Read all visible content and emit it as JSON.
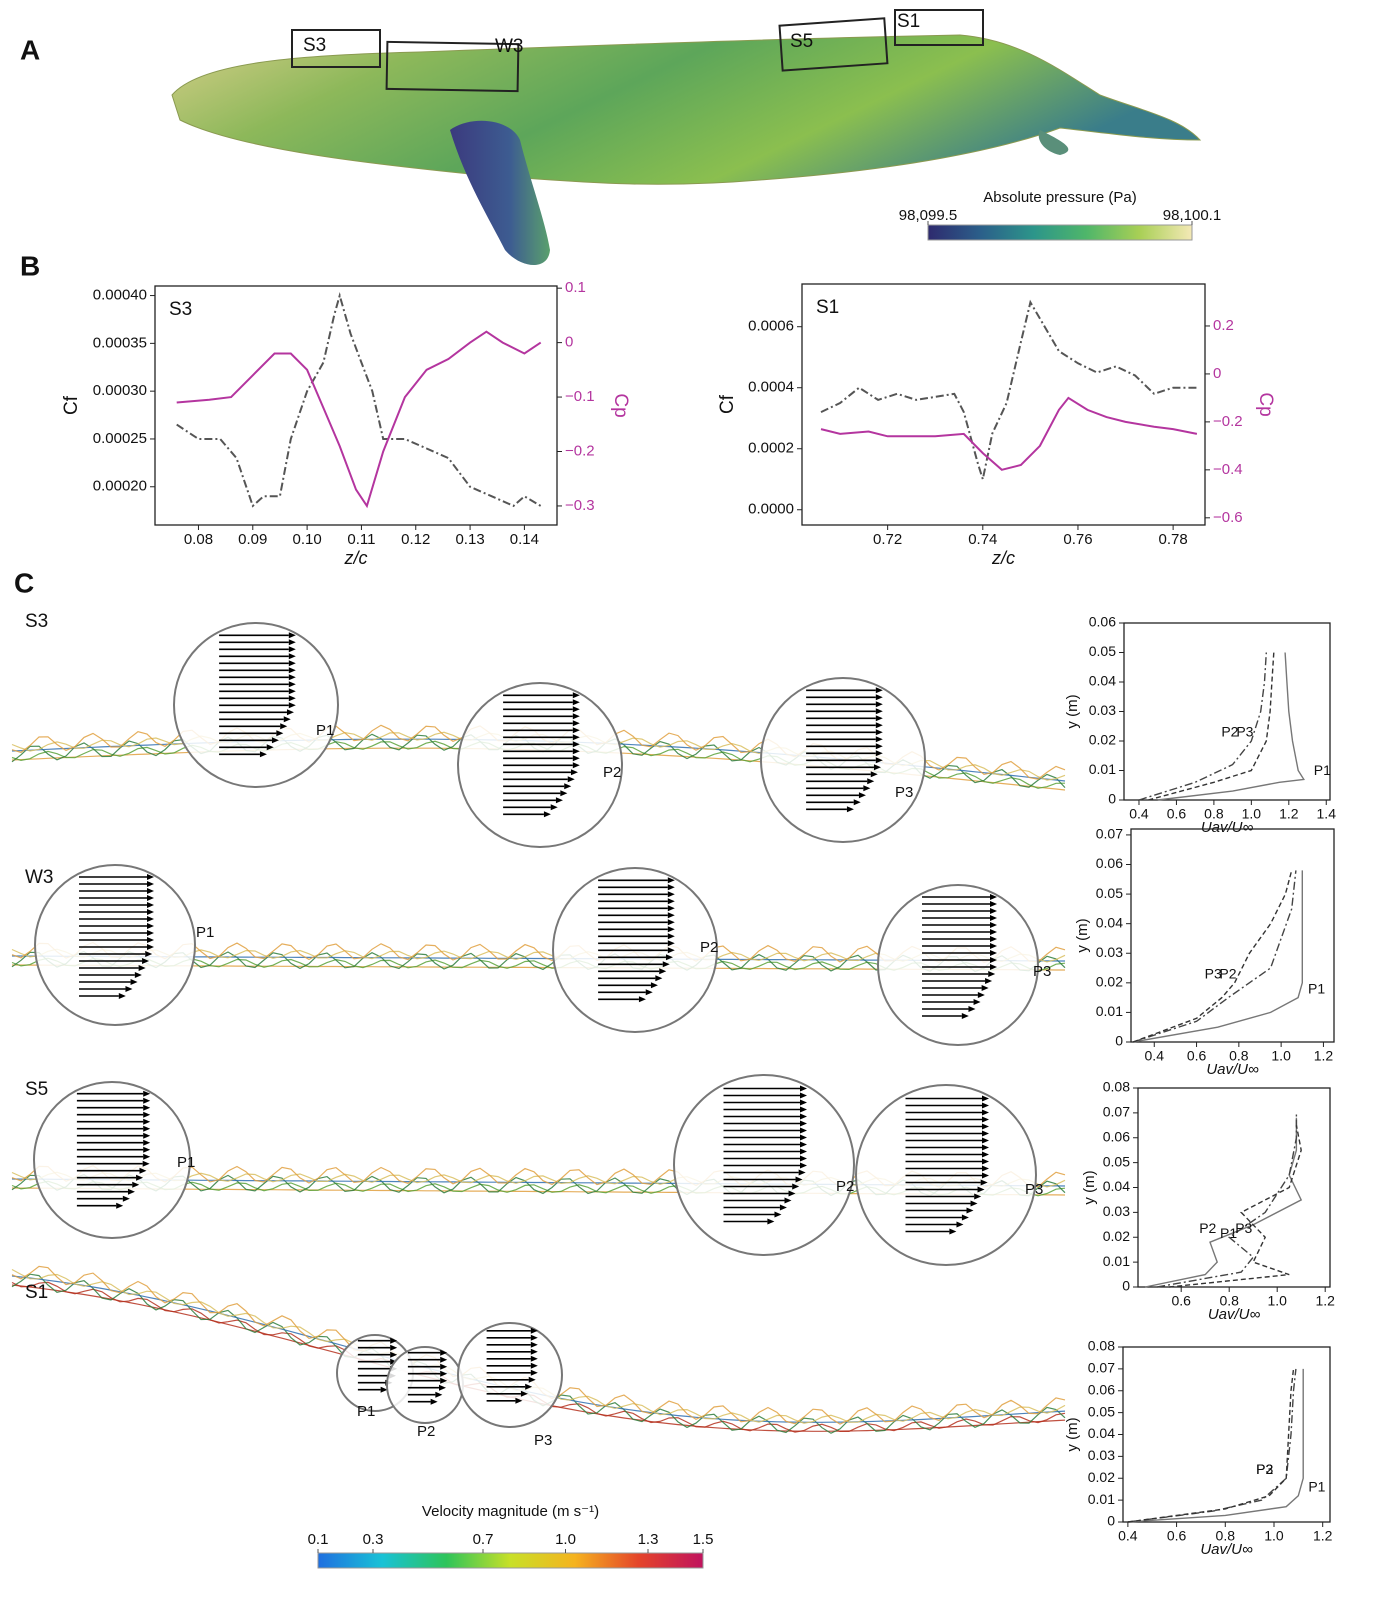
{
  "figure": {
    "panel_labels": [
      "A",
      "B",
      "C"
    ],
    "whale_boxes": [
      "S3",
      "W3",
      "S5",
      "S1"
    ],
    "rows": [
      {
        "label": "S3",
        "points": [
          "P1",
          "P2",
          "P3"
        ]
      },
      {
        "label": "W3",
        "points": [
          "P1",
          "P2",
          "P3"
        ]
      },
      {
        "label": "S5",
        "points": [
          "P1",
          "P2",
          "P3"
        ]
      },
      {
        "label": "S1",
        "points": [
          "P1",
          "P2",
          "P3"
        ]
      }
    ]
  },
  "chart_data": [
    {
      "type": "line",
      "label": "S3",
      "xlabel": "z/c",
      "ylabel": "Cf",
      "y2label": "Cp",
      "y2_color": "#b4359f",
      "xlim": [
        0.072,
        0.146
      ],
      "xticks": [
        0.08,
        0.09,
        {
          "value": 0.1,
          "label": "0.10"
        },
        0.11,
        0.12,
        0.13,
        0.14
      ],
      "ylim": [
        0.00016,
        0.00041
      ],
      "yticks": [
        {
          "value": 0.0002,
          "label": "0.00020"
        },
        0.00025,
        {
          "value": 0.0003,
          "label": "0.00030"
        },
        0.00035,
        {
          "value": 0.0004,
          "label": "0.00040"
        }
      ],
      "y2lim": [
        -0.335,
        0.104
      ],
      "y2ticks": [
        {
          "value": -0.3,
          "label": "−0.3"
        },
        {
          "value": -0.2,
          "label": "−0.2"
        },
        {
          "value": -0.1,
          "label": "−0.1"
        },
        0,
        0.1
      ],
      "series": [
        {
          "color": "#555555",
          "style": "dashdot",
          "x": [
            0.076,
            0.08,
            0.084,
            0.087,
            0.09,
            0.092,
            0.095,
            0.097,
            0.1,
            0.103,
            0.105,
            0.106,
            0.108,
            0.11,
            0.112,
            0.114,
            0.118,
            0.122,
            0.126,
            0.13,
            0.134,
            0.138,
            0.14,
            0.143
          ],
          "values": [
            0.000265,
            0.00025,
            0.00025,
            0.00023,
            0.00018,
            0.00019,
            0.00019,
            0.00025,
            0.0003,
            0.00033,
            0.00038,
            0.0004,
            0.00036,
            0.00033,
            0.0003,
            0.00025,
            0.00025,
            0.00024,
            0.00023,
            0.0002,
            0.00019,
            0.00018,
            0.00019,
            0.00018
          ]
        },
        {
          "color": "#b4359f",
          "style": "solid",
          "axis": "y2",
          "x": [
            0.076,
            0.082,
            0.086,
            0.09,
            0.094,
            0.097,
            0.1,
            0.103,
            0.106,
            0.109,
            0.111,
            0.114,
            0.118,
            0.122,
            0.126,
            0.13,
            0.133,
            0.136,
            0.14,
            0.143
          ],
          "values": [
            -0.11,
            -0.105,
            -0.1,
            -0.06,
            -0.02,
            -0.02,
            -0.05,
            -0.12,
            -0.19,
            -0.27,
            -0.3,
            -0.2,
            -0.1,
            -0.05,
            -0.03,
            0,
            0.02,
            0,
            -0.02,
            0
          ]
        }
      ]
    },
    {
      "type": "line",
      "label": "S1",
      "xlabel": "z/c",
      "ylabel": "Cf",
      "y2label": "Cp",
      "y2_color": "#b4359f",
      "xlim": [
        0.702,
        0.7867
      ],
      "xticks": [
        0.72,
        0.74,
        0.76,
        0.78
      ],
      "ylim": [
        -5e-05,
        0.00074
      ],
      "yticks": [
        {
          "value": 0,
          "label": "0.0000"
        },
        0.0002,
        0.0004,
        0.0006
      ],
      "y2lim": [
        -0.63,
        0.375
      ],
      "y2ticks": [
        {
          "value": -0.6,
          "label": "−0.6"
        },
        {
          "value": -0.4,
          "label": "−0.4"
        },
        {
          "value": -0.2,
          "label": "−0.2"
        },
        0,
        0.2
      ],
      "series": [
        {
          "color": "#555555",
          "style": "dashdot",
          "x": [
            0.706,
            0.71,
            0.714,
            0.718,
            0.722,
            0.726,
            0.73,
            0.734,
            0.736,
            0.739,
            0.74,
            0.742,
            0.745,
            0.748,
            0.75,
            0.753,
            0.756,
            0.76,
            0.764,
            0.768,
            0.772,
            0.776,
            0.78,
            0.785
          ],
          "values": [
            0.00032,
            0.00035,
            0.0004,
            0.00036,
            0.00038,
            0.00036,
            0.00037,
            0.00038,
            0.00032,
            0.00015,
            0.0001,
            0.00025,
            0.00035,
            0.00055,
            0.00068,
            0.0006,
            0.00052,
            0.00048,
            0.00045,
            0.00047,
            0.00044,
            0.00038,
            0.0004,
            0.0004
          ]
        },
        {
          "color": "#b4359f",
          "style": "solid",
          "axis": "y2",
          "x": [
            0.706,
            0.71,
            0.716,
            0.72,
            0.726,
            0.73,
            0.736,
            0.74,
            0.744,
            0.748,
            0.752,
            0.756,
            0.758,
            0.762,
            0.766,
            0.77,
            0.776,
            0.78,
            0.785
          ],
          "values": [
            -0.23,
            -0.25,
            -0.24,
            -0.26,
            -0.26,
            -0.26,
            -0.25,
            -0.33,
            -0.4,
            -0.38,
            -0.3,
            -0.15,
            -0.1,
            -0.15,
            -0.18,
            -0.2,
            -0.22,
            -0.23,
            -0.25
          ]
        }
      ]
    },
    {
      "type": "line",
      "xlabel": "Uav/U∞",
      "ylabel": "y (m)",
      "xlim": [
        0.32,
        1.42
      ],
      "xticks": [
        0.4,
        0.6,
        0.8,
        {
          "value": 1,
          "label": "1.0"
        },
        1.2,
        1.4
      ],
      "ylim": [
        0,
        0.06
      ],
      "yticks": [
        0,
        0.01,
        0.02,
        0.03,
        0.04,
        0.05,
        0.06
      ],
      "series": [
        {
          "name": "P1",
          "color": "#777777",
          "style": "solid",
          "x": [
            0.5,
            0.9,
            1.15,
            1.28,
            1.25,
            1.22,
            1.2,
            1.19,
            1.18
          ],
          "values": [
            0,
            0.003,
            0.006,
            0.007,
            0.01,
            0.02,
            0.03,
            0.04,
            0.05
          ]
        },
        {
          "name": "P2",
          "color": "#444444",
          "style": "dashdot",
          "x": [
            0.4,
            0.7,
            0.9,
            1.0,
            1.05,
            1.07,
            1.08
          ],
          "values": [
            0,
            0.006,
            0.012,
            0.02,
            0.03,
            0.04,
            0.05
          ]
        },
        {
          "name": "P3",
          "color": "#333333",
          "style": "dashed",
          "x": [
            0.45,
            0.8,
            1.0,
            1.08,
            1.1,
            1.11,
            1.12
          ],
          "values": [
            0,
            0.006,
            0.01,
            0.02,
            0.03,
            0.04,
            0.05
          ]
        }
      ]
    },
    {
      "type": "line",
      "xlabel": "Uav/U∞",
      "ylabel": "y (m)",
      "xlim": [
        0.29,
        1.25
      ],
      "xticks": [
        0.4,
        0.6,
        0.8,
        {
          "value": 1,
          "label": "1.0"
        },
        1.2
      ],
      "ylim": [
        0,
        0.072
      ],
      "yticks": [
        0,
        0.01,
        0.02,
        0.03,
        0.04,
        0.05,
        0.06,
        0.07
      ],
      "series": [
        {
          "name": "P1",
          "color": "#777777",
          "style": "solid",
          "x": [
            0.3,
            0.7,
            0.95,
            1.08,
            1.1,
            1.1,
            1.1,
            1.1,
            1.1
          ],
          "values": [
            0,
            0.005,
            0.01,
            0.015,
            0.02,
            0.03,
            0.04,
            0.05,
            0.058
          ]
        },
        {
          "name": "P2",
          "color": "#444444",
          "style": "dashdot",
          "x": [
            0.3,
            0.6,
            0.75,
            0.85,
            0.95,
            1.0,
            1.05,
            1.07
          ],
          "values": [
            0,
            0.007,
            0.015,
            0.02,
            0.025,
            0.035,
            0.045,
            0.058
          ]
        },
        {
          "name": "P3",
          "color": "#333333",
          "style": "dashed",
          "x": [
            0.3,
            0.6,
            0.72,
            0.78,
            0.85,
            0.95,
            1.02,
            1.05
          ],
          "values": [
            0,
            0.008,
            0.015,
            0.02,
            0.03,
            0.04,
            0.05,
            0.058
          ]
        }
      ]
    },
    {
      "type": "line",
      "xlabel": "Uav/U∞",
      "ylabel": "y (m)",
      "xlim": [
        0.42,
        1.22
      ],
      "xticks": [
        0.6,
        0.8,
        {
          "value": 1,
          "label": "1.0"
        },
        1.2
      ],
      "ylim": [
        0,
        0.08
      ],
      "yticks": [
        0,
        0.01,
        0.02,
        0.03,
        0.04,
        0.05,
        0.06,
        0.07,
        0.08
      ],
      "series": [
        {
          "name": "P1",
          "color": "#777777",
          "style": "solid",
          "x": [
            0.45,
            0.7,
            0.75,
            0.72,
            0.9,
            1.1,
            1.05,
            1.08,
            1.08
          ],
          "values": [
            0,
            0.005,
            0.01,
            0.018,
            0.025,
            0.035,
            0.045,
            0.055,
            0.068
          ]
        },
        {
          "name": "P2",
          "color": "#444444",
          "style": "dashdot",
          "x": [
            0.5,
            0.85,
            0.9,
            0.8,
            0.95,
            1.05,
            1.08,
            1.08
          ],
          "values": [
            0,
            0.006,
            0.012,
            0.02,
            0.03,
            0.045,
            0.06,
            0.07
          ]
        },
        {
          "name": "P3",
          "color": "#333333",
          "style": "dashed",
          "x": [
            0.55,
            1.05,
            0.9,
            0.95,
            0.85,
            1.05,
            1.1,
            1.08
          ],
          "values": [
            0,
            0.005,
            0.01,
            0.02,
            0.03,
            0.04,
            0.055,
            0.065
          ]
        }
      ]
    },
    {
      "type": "line",
      "xlabel": "Uav/U∞",
      "ylabel": "y (m)",
      "xlim": [
        0.38,
        1.23
      ],
      "xticks": [
        0.4,
        0.6,
        0.8,
        {
          "value": 1,
          "label": "1.0"
        },
        1.2
      ],
      "ylim": [
        0,
        0.08
      ],
      "yticks": [
        0,
        0.01,
        0.02,
        0.03,
        0.04,
        0.05,
        0.06,
        0.07,
        0.08
      ],
      "series": [
        {
          "name": "P1",
          "color": "#777777",
          "style": "solid",
          "x": [
            0.4,
            0.8,
            1.05,
            1.1,
            1.12,
            1.12,
            1.12,
            1.12
          ],
          "values": [
            0,
            0.003,
            0.007,
            0.012,
            0.02,
            0.04,
            0.06,
            0.07
          ]
        },
        {
          "name": "P2",
          "color": "#444444",
          "style": "dashdot",
          "x": [
            0.4,
            0.75,
            0.95,
            1.05,
            1.07,
            1.08,
            1.09
          ],
          "values": [
            0,
            0.005,
            0.01,
            0.02,
            0.04,
            0.06,
            0.07
          ]
        },
        {
          "name": "P3",
          "color": "#333333",
          "style": "dashed",
          "x": [
            0.4,
            0.8,
            0.98,
            1.05,
            1.06,
            1.07,
            1.08
          ],
          "values": [
            0,
            0.006,
            0.012,
            0.02,
            0.04,
            0.06,
            0.07
          ]
        }
      ]
    },
    {
      "type": "colorbar",
      "title": "Absolute pressure (Pa)",
      "xlim": [
        98099.5,
        98100.1
      ],
      "xticks": [
        {
          "value": 98099.5,
          "label": "98,099.5"
        },
        {
          "value": 98100.1,
          "label": "98,100.1"
        }
      ],
      "colors": [
        "#2e2a6e",
        "#2b5f8a",
        "#2c958a",
        "#4fb66a",
        "#a8cf55",
        "#f4e9b6"
      ]
    },
    {
      "type": "colorbar",
      "title": "Velocity magnitude (m s⁻¹)",
      "xlim": [
        0.1,
        1.5
      ],
      "xticks": [
        0.1,
        0.3,
        0.7,
        {
          "value": 1,
          "label": "1.0"
        },
        1.3,
        1.5
      ],
      "colors": [
        "#1f6fe0",
        "#19c2d6",
        "#2ec45a",
        "#c8e028",
        "#f5b31f",
        "#e4442a",
        "#c0135e"
      ]
    }
  ]
}
